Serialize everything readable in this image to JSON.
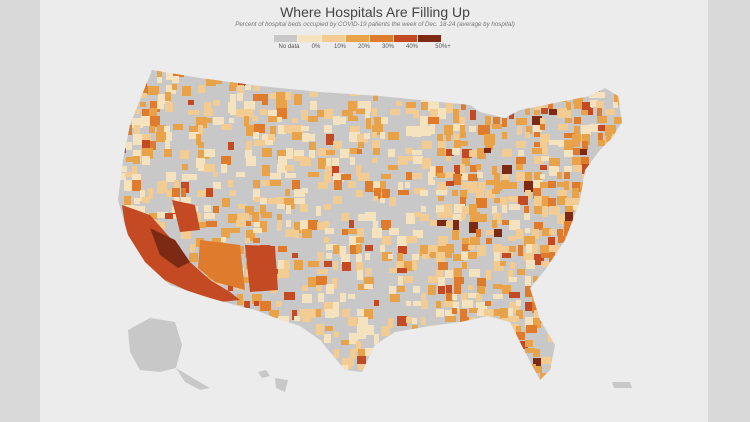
{
  "map": {
    "title": "Where Hospitals Are Filling Up",
    "subtitle": "Percent of hospital beds occupied by COVID-19 patients the week of Dec. 18-24 (average by hospital)",
    "legend": [
      {
        "label": "No data",
        "color": "#c8c8c8"
      },
      {
        "label": "0%",
        "color": "#f5e2bf"
      },
      {
        "label": "10%",
        "color": "#f2cc92"
      },
      {
        "label": "20%",
        "color": "#e8a24a"
      },
      {
        "label": "30%",
        "color": "#de7b2c"
      },
      {
        "label": "40%",
        "color": "#c34a22"
      },
      {
        "label": "50%+",
        "color": "#7d2a15"
      }
    ],
    "colors": {
      "nodata": "#c8c8c8",
      "c0": "#f5e2bf",
      "c10": "#f2cc92",
      "c20": "#e8a24a",
      "c30": "#de7b2c",
      "c40": "#c34a22",
      "c50": "#7d2a15",
      "background": "#ececec",
      "frame": "#d9d9d9"
    }
  }
}
